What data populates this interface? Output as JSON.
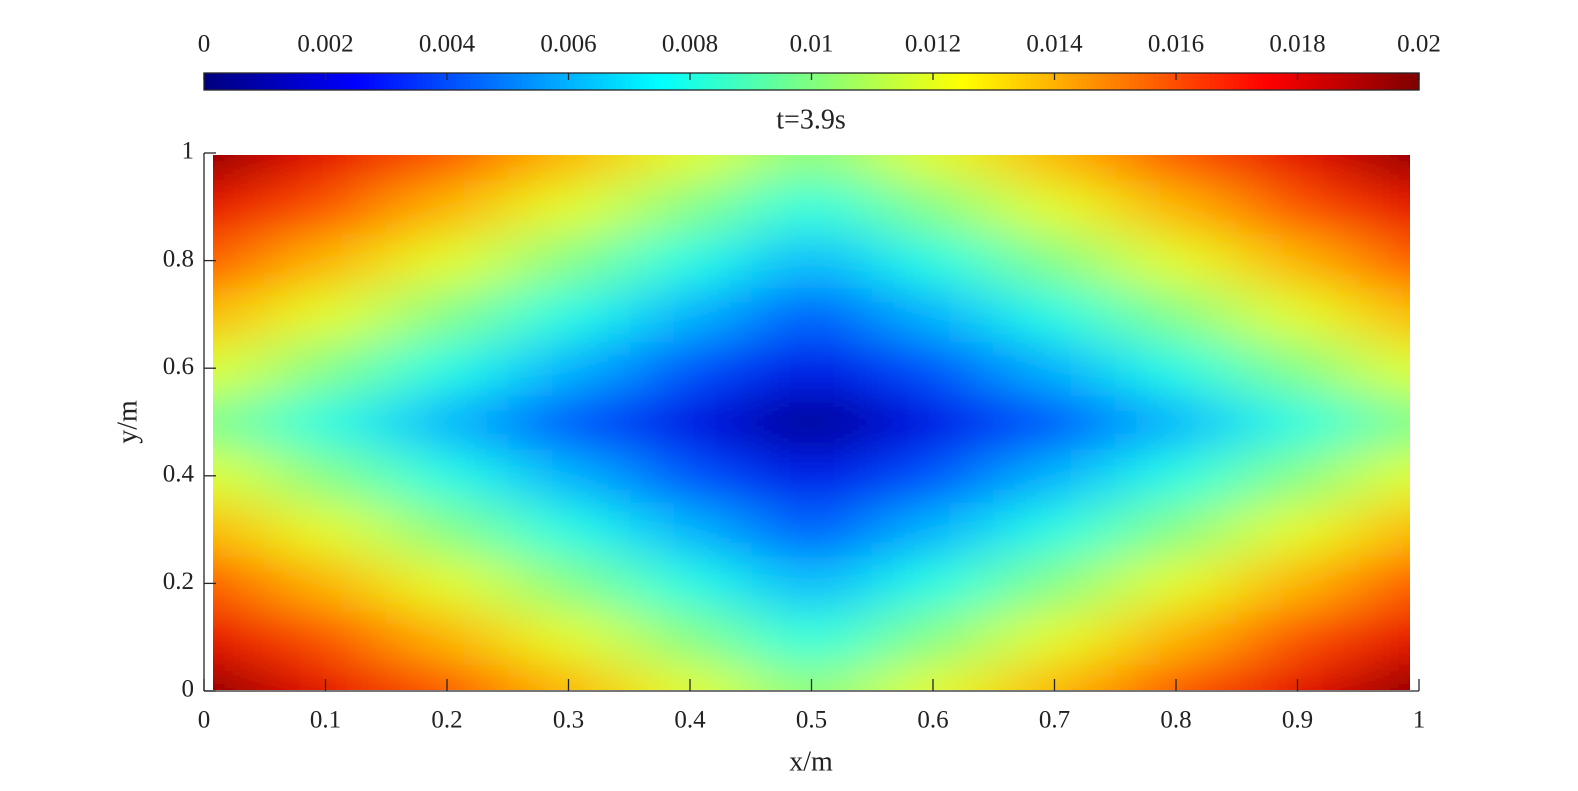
{
  "chart_data": {
    "type": "heatmap",
    "title": "t=3.9s",
    "x_label": "x/m",
    "y_label": "y/m",
    "colormap": "jet",
    "x": [
      0,
      0.1,
      0.2,
      0.3,
      0.4,
      0.5,
      0.6,
      0.7,
      0.8,
      0.9,
      1
    ],
    "y": [
      0,
      0.1,
      0.2,
      0.3,
      0.4,
      0.5,
      0.6,
      0.7,
      0.8,
      0.9,
      1
    ],
    "values": [
      [
        0.02,
        0.018,
        0.016,
        0.014,
        0.012,
        0.01,
        0.012,
        0.014,
        0.016,
        0.018,
        0.02
      ],
      [
        0.018,
        0.016,
        0.014,
        0.012,
        0.01,
        0.008,
        0.01,
        0.012,
        0.014,
        0.016,
        0.018
      ],
      [
        0.016,
        0.014,
        0.012,
        0.01,
        0.008,
        0.006,
        0.008,
        0.01,
        0.012,
        0.014,
        0.016
      ],
      [
        0.014,
        0.012,
        0.01,
        0.008,
        0.006,
        0.004,
        0.006,
        0.008,
        0.01,
        0.012,
        0.014
      ],
      [
        0.012,
        0.01,
        0.008,
        0.006,
        0.004,
        0.002,
        0.004,
        0.006,
        0.008,
        0.01,
        0.012
      ],
      [
        0.01,
        0.008,
        0.006,
        0.004,
        0.002,
        0,
        0.002,
        0.004,
        0.006,
        0.008,
        0.01
      ],
      [
        0.012,
        0.01,
        0.008,
        0.006,
        0.004,
        0.002,
        0.004,
        0.006,
        0.008,
        0.01,
        0.012
      ],
      [
        0.014,
        0.012,
        0.01,
        0.008,
        0.006,
        0.004,
        0.006,
        0.008,
        0.01,
        0.012,
        0.014
      ],
      [
        0.016,
        0.014,
        0.012,
        0.01,
        0.008,
        0.006,
        0.008,
        0.01,
        0.012,
        0.014,
        0.016
      ],
      [
        0.018,
        0.016,
        0.014,
        0.012,
        0.01,
        0.008,
        0.01,
        0.012,
        0.014,
        0.016,
        0.018
      ],
      [
        0.02,
        0.018,
        0.016,
        0.014,
        0.012,
        0.01,
        0.012,
        0.014,
        0.016,
        0.018,
        0.02
      ]
    ],
    "xlim": [
      0,
      1
    ],
    "xticks": [
      0,
      0.1,
      0.2,
      0.3,
      0.4,
      0.5,
      0.6,
      0.7,
      0.8,
      0.9,
      1
    ],
    "ylim": [
      0,
      1
    ],
    "yticks": [
      0,
      0.2,
      0.4,
      0.6,
      0.8,
      1
    ],
    "clim": [
      0,
      0.02
    ],
    "cticks": [
      0,
      0.002,
      0.004,
      0.006,
      0.008,
      0.01,
      0.012,
      0.014,
      0.016,
      0.018,
      0.02
    ]
  }
}
